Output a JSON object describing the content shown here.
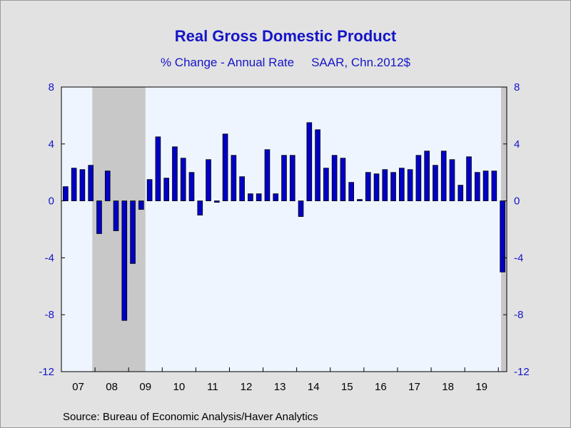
{
  "title": "Real Gross Domestic Product",
  "subtitle": [
    "% Change - Annual Rate",
    "SAAR, Chn.2012$"
  ],
  "source": "Source:  Bureau of Economic Analysis/Haver Analytics",
  "colors": {
    "bar": "#0000c8",
    "plot_bg": "#eef5ff",
    "recession": "#c8c8c8",
    "text": "#1515c8"
  },
  "chart_data": {
    "type": "bar",
    "ylim": [
      -12,
      8
    ],
    "yticks": [
      8,
      4,
      0,
      -4,
      -8,
      -12
    ],
    "xlim": [
      2007.0,
      2020.25
    ],
    "year_labels": [
      "07",
      "08",
      "09",
      "10",
      "11",
      "12",
      "13",
      "14",
      "15",
      "16",
      "17",
      "18",
      "19"
    ],
    "x_start": 2007.0,
    "period": "quarterly",
    "values": [
      1.0,
      2.3,
      2.2,
      2.5,
      -2.3,
      2.1,
      -2.1,
      -8.4,
      -4.4,
      -0.6,
      1.5,
      4.5,
      1.6,
      3.8,
      3.0,
      2.0,
      -1.0,
      2.9,
      -0.1,
      4.7,
      3.2,
      1.7,
      0.5,
      0.5,
      3.6,
      0.5,
      3.2,
      3.2,
      -1.1,
      5.5,
      5.0,
      2.3,
      3.2,
      3.0,
      1.3,
      0.1,
      2.0,
      1.9,
      2.2,
      2.0,
      2.3,
      2.2,
      3.2,
      3.5,
      2.5,
      3.5,
      2.9,
      1.1,
      3.1,
      2.0,
      2.1,
      2.1,
      -5.0
    ],
    "recessions": [
      [
        2007.92,
        2009.5
      ],
      [
        2020.08,
        2020.25
      ]
    ],
    "grid": false
  }
}
